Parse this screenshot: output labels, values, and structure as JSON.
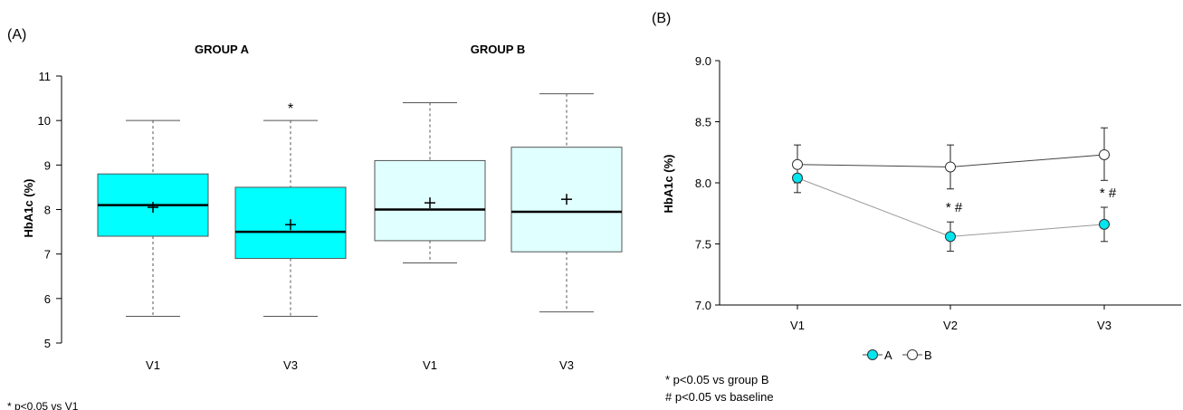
{
  "chart_data": [
    {
      "type": "box",
      "panel_label": "(A)",
      "ylabel": "HbA1c (%)",
      "ylim": [
        5,
        11
      ],
      "yticks": [
        "5",
        "6",
        "7",
        "8",
        "9",
        "10",
        "11"
      ],
      "groups": [
        {
          "label": "GROUP A",
          "box_color": "#00ffff",
          "boxes": [
            {
              "label": "V1",
              "whisker_low": 5.6,
              "q1": 7.4,
              "median": 8.1,
              "q3": 8.8,
              "whisker_high": 10.0,
              "mean": 8.05,
              "annotation": ""
            },
            {
              "label": "V3",
              "whisker_low": 5.6,
              "q1": 6.9,
              "median": 7.5,
              "q3": 8.5,
              "whisker_high": 10.0,
              "mean": 7.66,
              "annotation": "*"
            }
          ]
        },
        {
          "label": "GROUP B",
          "box_color": "#e0ffff",
          "boxes": [
            {
              "label": "V1",
              "whisker_low": 6.8,
              "q1": 7.3,
              "median": 8.0,
              "q3": 9.1,
              "whisker_high": 10.4,
              "mean": 8.15,
              "annotation": ""
            },
            {
              "label": "V3",
              "whisker_low": 5.7,
              "q1": 7.05,
              "median": 7.95,
              "q3": 9.4,
              "whisker_high": 10.6,
              "mean": 8.23,
              "annotation": ""
            }
          ]
        }
      ],
      "footnote": "* p<0.05 vs V1"
    },
    {
      "type": "line",
      "panel_label": "(B)",
      "ylabel": "HbA1c (%)",
      "ylim": [
        7.0,
        9.0
      ],
      "yticks": [
        "7.0",
        "7.5",
        "8.0",
        "8.5",
        "9.0"
      ],
      "categories": [
        "V1",
        "V2",
        "V3"
      ],
      "series": [
        {
          "name": "A",
          "color": "#00e5ee",
          "values": [
            8.04,
            7.56,
            7.66
          ],
          "err_low": [
            7.92,
            7.44,
            7.52
          ],
          "err_high": [
            8.16,
            7.68,
            7.8
          ],
          "annotations": [
            "",
            "*  #",
            "*  #"
          ]
        },
        {
          "name": "B",
          "color": "#ffffff",
          "values": [
            8.15,
            8.13,
            8.23
          ],
          "err_low": [
            8.0,
            7.95,
            8.02
          ],
          "err_high": [
            8.31,
            8.31,
            8.45
          ],
          "annotations": [
            "",
            "",
            ""
          ]
        }
      ],
      "legend_position": "bottom",
      "footnotes": [
        "* p<0.05 vs group B",
        "# p<0.05 vs baseline"
      ]
    }
  ]
}
